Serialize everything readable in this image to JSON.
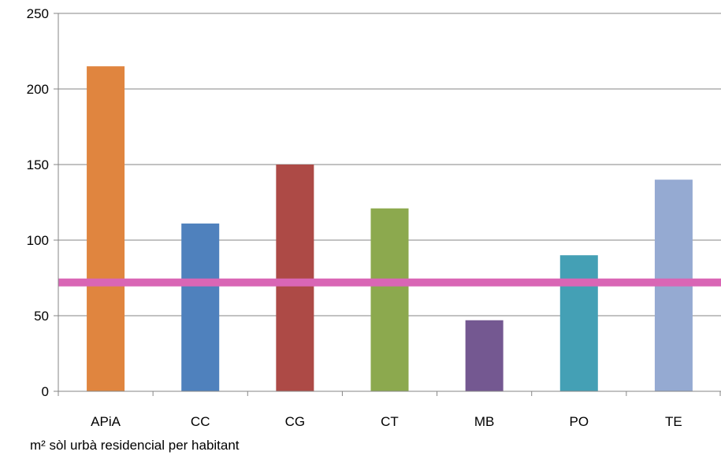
{
  "chart_data": {
    "type": "bar",
    "categories": [
      "APiA",
      "CC",
      "CG",
      "CT",
      "MB",
      "PO",
      "TE"
    ],
    "values": [
      215,
      111,
      150,
      121,
      47,
      90,
      140
    ],
    "colors": [
      "#e0853f",
      "#4f81bd",
      "#ad4a46",
      "#8ca94e",
      "#745891",
      "#44a0b5",
      "#95aad2"
    ],
    "ylim": [
      0,
      250
    ],
    "yticks": [
      0,
      50,
      100,
      150,
      200,
      250
    ],
    "reference_line": {
      "value": 72,
      "color": "#d966b5"
    },
    "xlabel": "m² sòl urbà residencial per habitant",
    "ylabel": "",
    "title": "",
    "grid": true,
    "legend": "none"
  }
}
